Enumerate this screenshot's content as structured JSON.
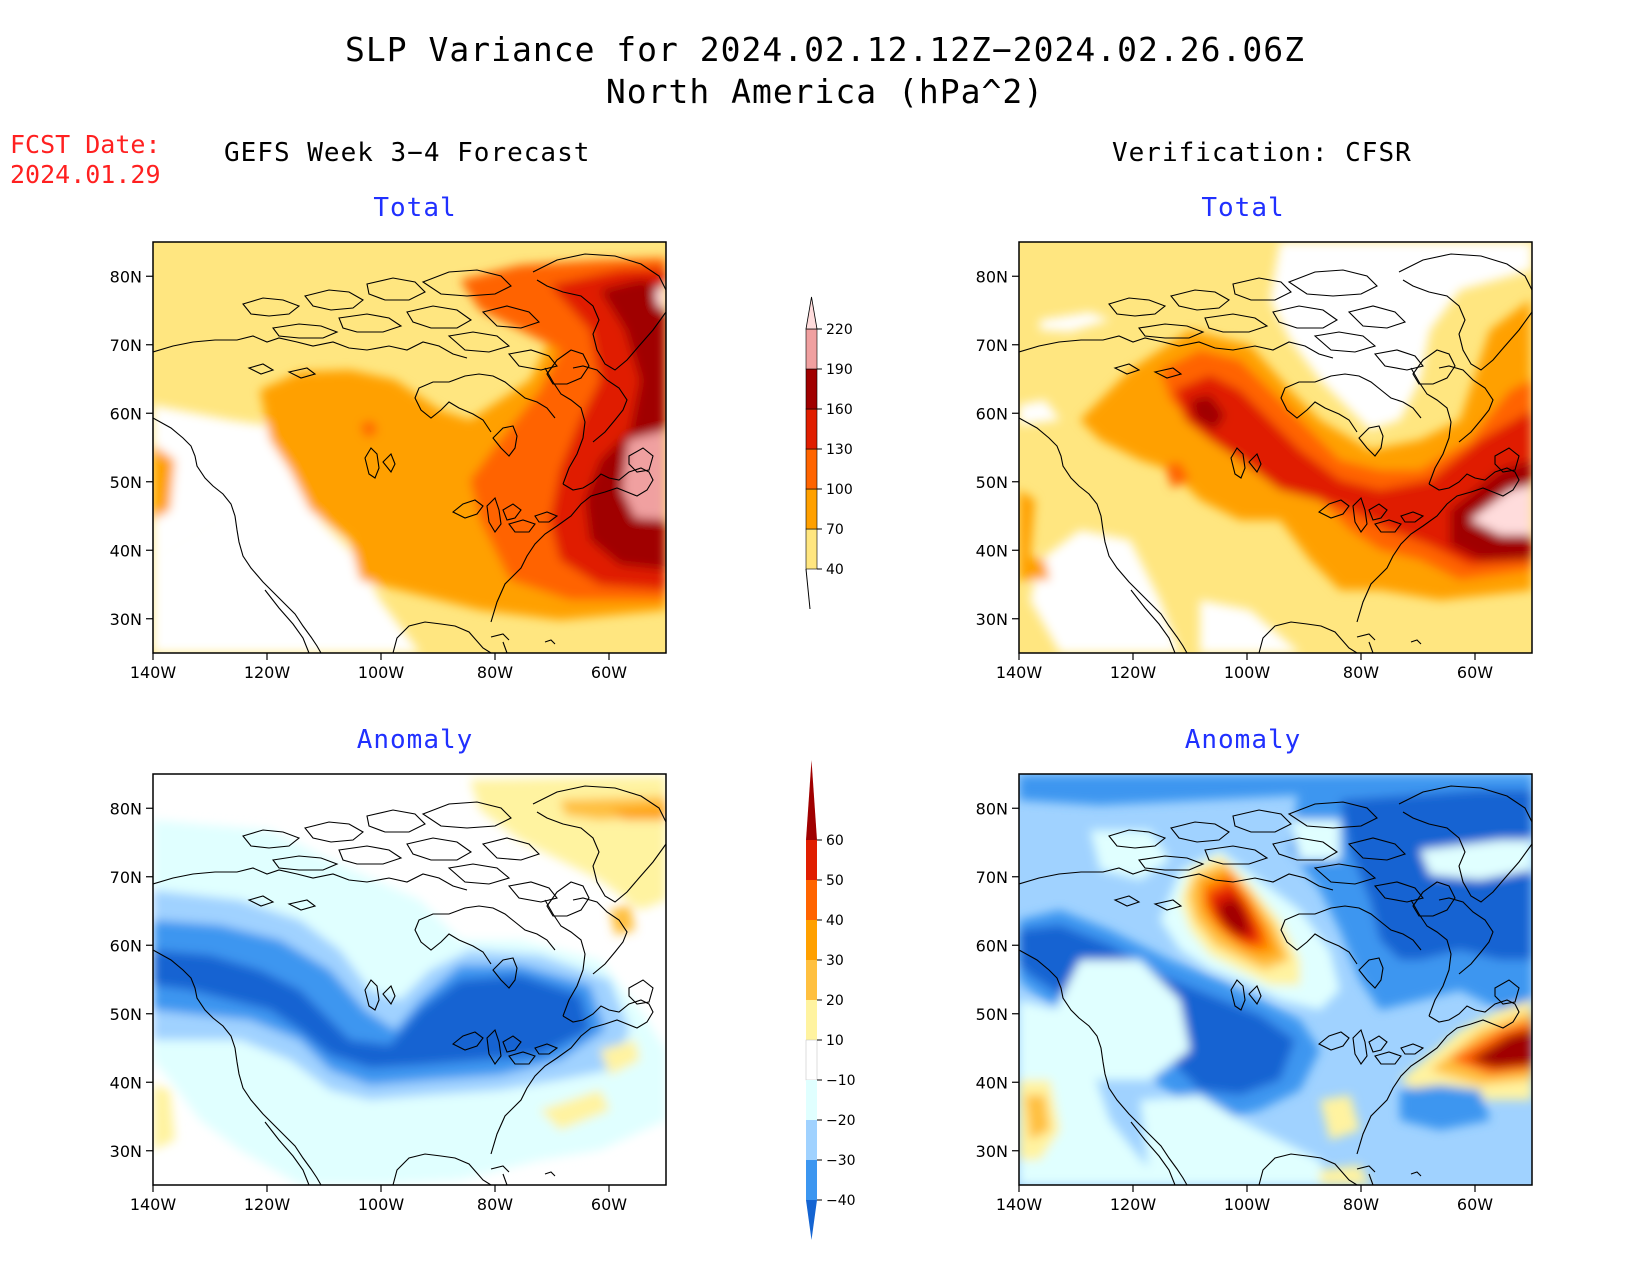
{
  "title": {
    "line1": "SLP Variance for 2024.02.12.12Z−2024.02.26.06Z",
    "line2": "North America (hPa^2)"
  },
  "fcst": {
    "label": "FCST Date:",
    "date": "2024.01.29"
  },
  "columns": {
    "left": "GEFS Week 3−4 Forecast",
    "right": "Verification: CFSR"
  },
  "panels": {
    "tl": "Total",
    "tr": "Total",
    "bl": "Anomaly",
    "br": "Anomaly"
  },
  "axes": {
    "lat_labels": [
      "80N",
      "70N",
      "60N",
      "50N",
      "40N",
      "30N"
    ],
    "lat_values": [
      80,
      70,
      60,
      50,
      40,
      30
    ],
    "lon_labels": [
      "140W",
      "120W",
      "100W",
      "80W",
      "60W"
    ],
    "lon_values": [
      -140,
      -120,
      -100,
      -80,
      -60
    ],
    "lon_range": [
      -140,
      -50
    ],
    "lat_range": [
      25,
      85
    ]
  },
  "colorbars": {
    "total": {
      "labels": [
        "40",
        "70",
        "100",
        "130",
        "160",
        "190",
        "220"
      ],
      "colors": [
        "#ffe680",
        "#ffa000",
        "#ff6400",
        "#e01e00",
        "#a00000",
        "#f0a0a0",
        "#ffdcdc"
      ]
    },
    "anomaly": {
      "labels": [
        "60",
        "50",
        "40",
        "30",
        "20",
        "10",
        "−10",
        "−20",
        "−30",
        "−40"
      ],
      "colors": [
        "#a00000",
        "#e01e00",
        "#ff6400",
        "#ffa000",
        "#ffc040",
        "#fff3a0",
        "#ffffff",
        "#e0ffff",
        "#a0d2ff",
        "#3c96f0",
        "#1464d2"
      ]
    }
  },
  "colors": {
    "panel_title": "#2030ff",
    "fcst_text": "#ff2020"
  }
}
